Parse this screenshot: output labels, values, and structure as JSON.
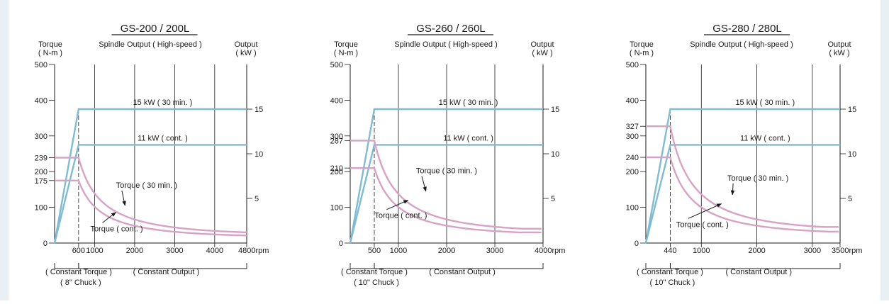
{
  "colors": {
    "output_line": "#7fbcd2",
    "torque_curve": "#d7a2c6",
    "axis": "#1a1a1a"
  },
  "chart_data": [
    {
      "type": "line",
      "title": "GS-200 / 200L",
      "subtitle": "Spindle Output ( High-speed )",
      "left_axis_label": [
        "Torque",
        "( N-m )"
      ],
      "right_axis_label": [
        "Output",
        "( kW )"
      ],
      "xlabel_unit": "rpm",
      "xlim": [
        0,
        4800
      ],
      "ylim_torque": [
        0,
        500
      ],
      "ylim_output": [
        0,
        20
      ],
      "x_ticks": [
        {
          "v": 600,
          "t": "600"
        },
        {
          "v": 1000,
          "t": "1000"
        },
        {
          "v": 2000,
          "t": "2000"
        },
        {
          "v": 3000,
          "t": "3000"
        },
        {
          "v": 4000,
          "t": "4000"
        },
        {
          "v": 4800,
          "t": "4800rpm"
        }
      ],
      "grid_x": [
        1000,
        2000,
        3000,
        4000
      ],
      "left_ticks": [
        {
          "v": 0,
          "t": "0"
        },
        {
          "v": 100,
          "t": "100"
        },
        {
          "v": 175,
          "t": "175"
        },
        {
          "v": 200,
          "t": "200"
        },
        {
          "v": 239,
          "t": "239"
        },
        {
          "v": 300,
          "t": "300"
        },
        {
          "v": 400,
          "t": "400"
        },
        {
          "v": 500,
          "t": "500"
        }
      ],
      "right_ticks": [
        {
          "v": 5,
          "t": "5"
        },
        {
          "v": 10,
          "t": "10"
        },
        {
          "v": 15,
          "t": "15"
        }
      ],
      "base_speed": 600,
      "series": [
        {
          "name": "15 kW ( 30 min. )",
          "kind": "output",
          "kw": 15,
          "label_x": 2700
        },
        {
          "name": "11 kW ( cont. )",
          "kind": "output",
          "kw": 11,
          "label_x": 2700
        },
        {
          "name": "Torque ( 30 min. )",
          "kind": "torque",
          "torque_start": 239,
          "torque_end": 30,
          "label": {
            "x": 2300,
            "y": 155
          },
          "arrow_to": {
            "x": 1760,
            "y": 105
          }
        },
        {
          "name": "Torque ( cont. )",
          "kind": "torque",
          "torque_start": 175,
          "torque_end": 20,
          "label": {
            "x": 1550,
            "y": 33
          },
          "arrow_to": {
            "x": 1530,
            "y": 86
          }
        }
      ],
      "brackets": [
        {
          "label": "( Constant Torque )",
          "from": 0,
          "to": 600
        },
        {
          "label": "( Constant Output )",
          "from": 600,
          "to": 4800
        }
      ],
      "chuck_label": "( 8\" Chuck )"
    },
    {
      "type": "line",
      "title": "GS-260 / 260L",
      "subtitle": "Spindle Output ( High-speed )",
      "left_axis_label": [
        "Torque",
        "( N-m )"
      ],
      "right_axis_label": [
        "Output",
        "( kW )"
      ],
      "xlabel_unit": "rpm",
      "xlim": [
        0,
        4000
      ],
      "ylim_torque": [
        0,
        500
      ],
      "ylim_output": [
        0,
        20
      ],
      "x_ticks": [
        {
          "v": 500,
          "t": "500"
        },
        {
          "v": 1000,
          "t": "1000"
        },
        {
          "v": 2000,
          "t": "2000"
        },
        {
          "v": 3000,
          "t": "3000"
        },
        {
          "v": 4000,
          "t": "4000rpm"
        }
      ],
      "grid_x": [
        1000,
        2000,
        3000
      ],
      "left_ticks": [
        {
          "v": 0,
          "t": "0"
        },
        {
          "v": 100,
          "t": "100"
        },
        {
          "v": 200,
          "t": "200"
        },
        {
          "v": 210,
          "t": "210"
        },
        {
          "v": 287,
          "t": "287"
        },
        {
          "v": 300,
          "t": "300"
        },
        {
          "v": 400,
          "t": "400"
        },
        {
          "v": 500,
          "t": "500"
        }
      ],
      "right_ticks": [
        {
          "v": 5,
          "t": "5"
        },
        {
          "v": 10,
          "t": "10"
        },
        {
          "v": 15,
          "t": "15"
        }
      ],
      "base_speed": 500,
      "series": [
        {
          "name": "15 kW ( 30 min. )",
          "kind": "output",
          "kw": 15,
          "label_x": 2450
        },
        {
          "name": "11 kW ( cont. )",
          "kind": "output",
          "kw": 11,
          "label_x": 2450
        },
        {
          "name": "Torque ( 30 min. )",
          "kind": "torque",
          "torque_start": 287,
          "torque_end": 40,
          "label": {
            "x": 2000,
            "y": 195
          },
          "arrow_to": {
            "x": 1570,
            "y": 145
          }
        },
        {
          "name": "Torque ( cont. )",
          "kind": "torque",
          "torque_start": 210,
          "torque_end": 30,
          "label": {
            "x": 1050,
            "y": 70
          },
          "arrow_to": {
            "x": 1200,
            "y": 120
          }
        }
      ],
      "brackets": [
        {
          "label": "( Constant Torque )",
          "from": 0,
          "to": 500
        },
        {
          "label": "( Constant Output )",
          "from": 500,
          "to": 4000
        }
      ],
      "chuck_label": "( 10\" Chuck )"
    },
    {
      "type": "line",
      "title": "GS-280 / 280L",
      "subtitle": "Spindle Output ( High-speed )",
      "left_axis_label": [
        "Torque",
        "( N-m )"
      ],
      "right_axis_label": [
        "Output",
        "( kW )"
      ],
      "xlabel_unit": "rpm",
      "xlim": [
        0,
        3500
      ],
      "ylim_torque": [
        0,
        500
      ],
      "ylim_output": [
        0,
        20
      ],
      "x_ticks": [
        {
          "v": 440,
          "t": "440"
        },
        {
          "v": 1000,
          "t": "1000"
        },
        {
          "v": 2000,
          "t": "2000"
        },
        {
          "v": 3000,
          "t": "3000"
        },
        {
          "v": 3500,
          "t": "3500rpm"
        }
      ],
      "grid_x": [
        1000,
        2000,
        3000
      ],
      "left_ticks": [
        {
          "v": 0,
          "t": "0"
        },
        {
          "v": 100,
          "t": "100"
        },
        {
          "v": 200,
          "t": "200"
        },
        {
          "v": 240,
          "t": "240"
        },
        {
          "v": 300,
          "t": "300"
        },
        {
          "v": 327,
          "t": "327"
        },
        {
          "v": 400,
          "t": "400"
        },
        {
          "v": 500,
          "t": "500"
        }
      ],
      "right_ticks": [
        {
          "v": 5,
          "t": "5"
        },
        {
          "v": 10,
          "t": "10"
        },
        {
          "v": 15,
          "t": "15"
        }
      ],
      "base_speed": 440,
      "series": [
        {
          "name": "15 kW ( 30 min. )",
          "kind": "output",
          "kw": 15,
          "label_x": 2150
        },
        {
          "name": "11 kW ( cont. )",
          "kind": "output",
          "kw": 11,
          "label_x": 2150
        },
        {
          "name": "Torque ( 30 min. )",
          "kind": "torque",
          "torque_start": 327,
          "torque_end": 45,
          "label": {
            "x": 2020,
            "y": 175
          },
          "arrow_to": {
            "x": 1560,
            "y": 135
          }
        },
        {
          "name": "Torque ( cont. )",
          "kind": "torque",
          "torque_start": 240,
          "torque_end": 32,
          "label": {
            "x": 1020,
            "y": 45
          },
          "arrow_to": {
            "x": 1360,
            "y": 110
          }
        }
      ],
      "brackets": [
        {
          "label": "( Constant Torque )",
          "from": 0,
          "to": 440
        },
        {
          "label": "( Constant Output )",
          "from": 440,
          "to": 3500
        }
      ],
      "chuck_label": "( 10\" Chuck )"
    }
  ]
}
